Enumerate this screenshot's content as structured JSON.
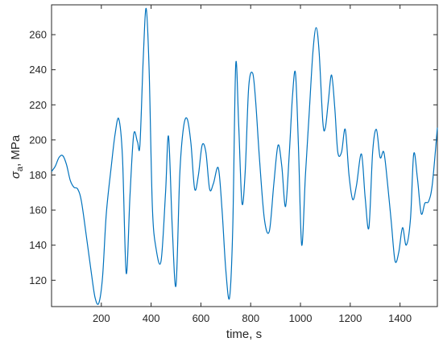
{
  "chart_data": {
    "type": "line",
    "xlabel": "time, s",
    "ylabel_symbol": "σ",
    "ylabel_subscript": "a",
    "ylabel_rest": ", MPa",
    "xlim": [
      0,
      1550
    ],
    "ylim": [
      105,
      277
    ],
    "xticks": [
      200,
      400,
      600,
      800,
      1000,
      1200,
      1400
    ],
    "yticks": [
      120,
      140,
      160,
      180,
      200,
      220,
      240,
      260
    ],
    "grid": false,
    "line_color": "#0072BD",
    "series": [
      {
        "x": [
          0,
          15,
          30,
          45,
          60,
          75,
          90,
          105,
          120,
          140,
          160,
          175,
          190,
          205,
          220,
          240,
          255,
          270,
          285,
          300,
          315,
          330,
          345,
          355,
          368,
          380,
          392,
          405,
          420,
          440,
          458,
          470,
          485,
          500,
          515,
          530,
          545,
          560,
          575,
          590,
          605,
          620,
          635,
          650,
          670,
          685,
          700,
          715,
          728,
          740,
          752,
          765,
          778,
          792,
          808,
          820,
          835,
          855,
          875,
          893,
          910,
          925,
          940,
          955,
          968,
          980,
          992,
          1005,
          1020,
          1035,
          1050,
          1063,
          1075,
          1090,
          1100,
          1112,
          1125,
          1138,
          1150,
          1165,
          1180,
          1195,
          1210,
          1225,
          1245,
          1260,
          1275,
          1290,
          1305,
          1320,
          1335,
          1350,
          1365,
          1380,
          1395,
          1410,
          1425,
          1442,
          1455,
          1470,
          1485,
          1500,
          1515,
          1530,
          1550
        ],
        "y": [
          182,
          185,
          190,
          191,
          186,
          177,
          173,
          172,
          165,
          145,
          124,
          110,
          107,
          122,
          158,
          185,
          203,
          212,
          190,
          124,
          168,
          203,
          199,
          197,
          245,
          275,
          240,
          162,
          138,
          131,
          170,
          202,
          150,
          117,
          180,
          207,
          212,
          198,
          172,
          180,
          197,
          193,
          172,
          175,
          184,
          160,
          126,
          110,
          150,
          243,
          208,
          164,
          182,
          230,
          238,
          222,
          190,
          155,
          148,
          175,
          197,
          185,
          162,
          192,
          225,
          238,
          196,
          140,
          180,
          215,
          250,
          264,
          250,
          210,
          207,
          222,
          237,
          218,
          193,
          193,
          206,
          180,
          166,
          174,
          192,
          167,
          150,
          193,
          206,
          190,
          193,
          175,
          153,
          131,
          136,
          150,
          140,
          155,
          192,
          178,
          158,
          164,
          165,
          175,
          207
        ]
      }
    ]
  }
}
